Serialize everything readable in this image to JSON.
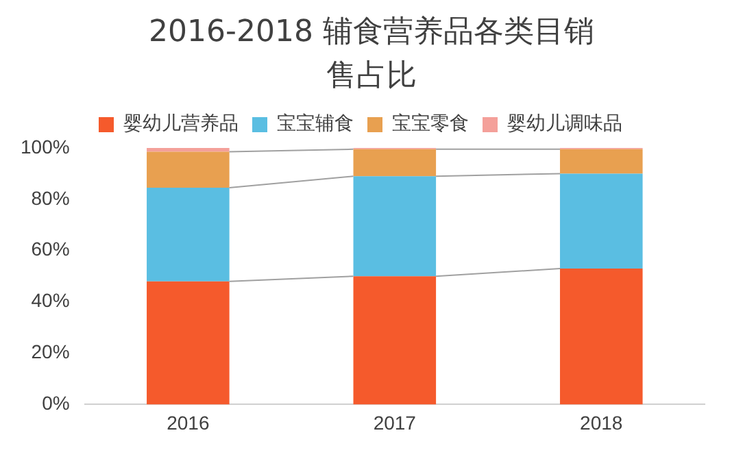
{
  "chart_data": {
    "type": "bar",
    "title": "2016-2018 辅食营养品各类目销售占比",
    "categories": [
      "2016",
      "2017",
      "2018"
    ],
    "stacked": true,
    "ylim": [
      0,
      100
    ],
    "yticks": [
      {
        "value": 0,
        "label": "0%"
      },
      {
        "value": 20,
        "label": "20%"
      },
      {
        "value": 40,
        "label": "40%"
      },
      {
        "value": 60,
        "label": "60%"
      },
      {
        "value": 80,
        "label": "80%"
      },
      {
        "value": 100,
        "label": "100%"
      }
    ],
    "grid": false,
    "legend": "top",
    "series": [
      {
        "name": "婴幼儿营养品",
        "color": "#f55a2c",
        "values": [
          48,
          50,
          53
        ]
      },
      {
        "name": "宝宝辅食",
        "color": "#5abee2",
        "values": [
          36.5,
          39,
          37
        ]
      },
      {
        "name": "宝宝零食",
        "color": "#e8a050",
        "values": [
          14,
          10.5,
          9.5
        ]
      },
      {
        "name": "婴幼儿调味品",
        "color": "#f4a09a",
        "values": [
          1.5,
          0.5,
          0.5
        ]
      }
    ]
  }
}
